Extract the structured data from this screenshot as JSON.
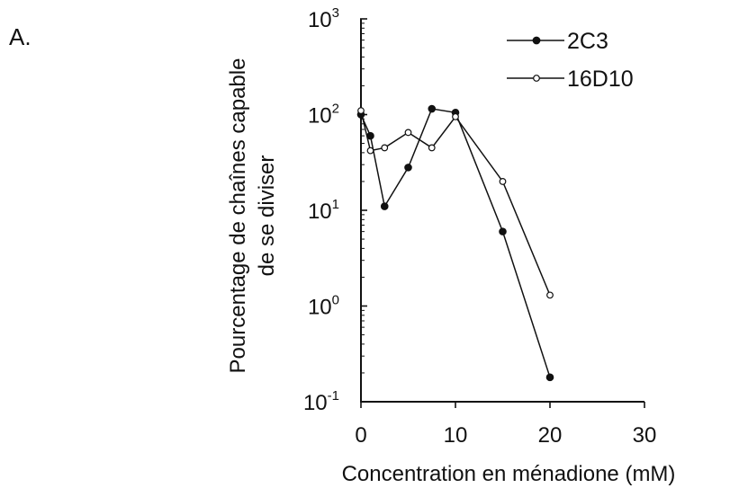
{
  "panel_label": "A.",
  "chart_data": {
    "type": "line",
    "xlabel": "Concentration en ménadione (mM)",
    "ylabel_lines": [
      "Pourcentage de chaînes capable",
      "de se diviser"
    ],
    "xlim": [
      0,
      30
    ],
    "ylim": [
      0.1,
      1000
    ],
    "yscale": "log",
    "x_ticks": [
      {
        "value": 0,
        "label": "0"
      },
      {
        "value": 10,
        "label": "10"
      },
      {
        "value": 20,
        "label": "20"
      },
      {
        "value": 30,
        "label": "30"
      }
    ],
    "y_ticks": [
      {
        "value": 1000,
        "base": "10",
        "exp": "3"
      },
      {
        "value": 100,
        "base": "10",
        "exp": "2"
      },
      {
        "value": 10,
        "base": "10",
        "exp": "1"
      },
      {
        "value": 1,
        "base": "10",
        "exp": "0"
      },
      {
        "value": 0.1,
        "base": "10",
        "exp": "-1"
      }
    ],
    "legend_position": "top-right",
    "grid": false,
    "series": [
      {
        "name": "2C3",
        "marker": "filled",
        "color": "#111111",
        "x": [
          0,
          1,
          2.5,
          5,
          7.5,
          10,
          15,
          20
        ],
        "y": [
          100,
          60,
          11,
          28,
          115,
          105,
          6,
          0.18
        ]
      },
      {
        "name": "16D10",
        "marker": "open",
        "color": "#111111",
        "x": [
          0,
          1,
          2.5,
          5,
          7.5,
          10,
          15,
          20
        ],
        "y": [
          110,
          42,
          45,
          65,
          45,
          95,
          20,
          1.3
        ]
      }
    ]
  }
}
